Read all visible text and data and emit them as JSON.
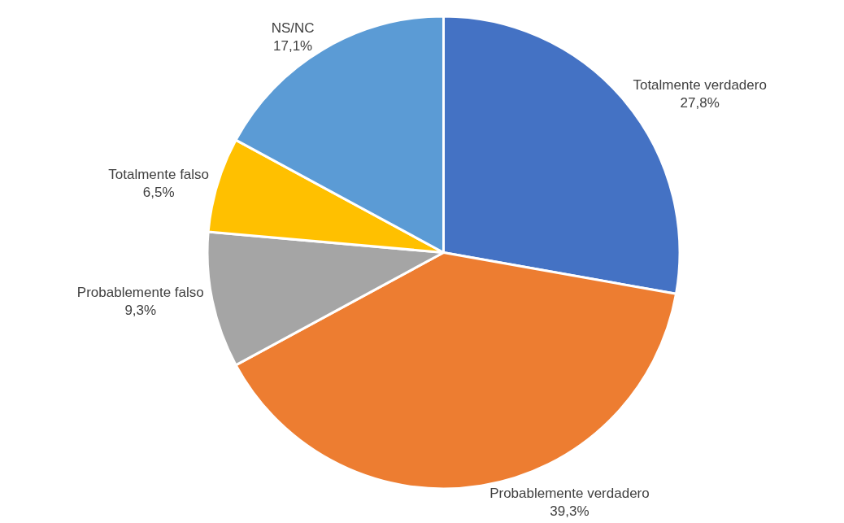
{
  "chart_data": {
    "type": "pie",
    "categories": [
      "Totalmente verdadero",
      "Probablemente verdadero",
      "Probablemente falso",
      "Totalmente falso",
      "NS/NC"
    ],
    "values": [
      27.8,
      39.3,
      9.3,
      6.5,
      17.1
    ],
    "value_labels": [
      "27,8%",
      "39,3%",
      "9,3%",
      "6,5%",
      "17,1%"
    ],
    "colors": [
      "#4472c4",
      "#ed7d31",
      "#a5a5a5",
      "#ffc000",
      "#5b9bd5"
    ],
    "legend": false
  }
}
